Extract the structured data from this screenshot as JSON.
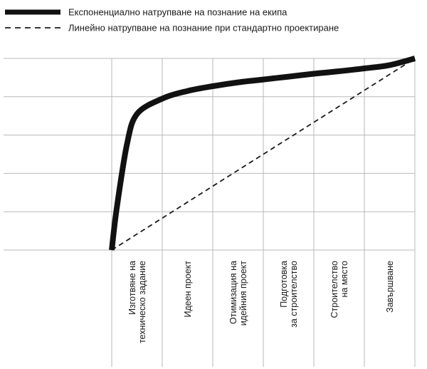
{
  "chart_data": {
    "type": "line",
    "categories": [
      "Изготвяне на техническо задание",
      "Идеен проект",
      "Отимизация на идейния проект",
      "Подготовка за строителство",
      "Строителство на място",
      "Завършване"
    ],
    "tick_labels": [
      [
        "Изготвяне на",
        "техническо задание"
      ],
      [
        "Идеен проект"
      ],
      [
        "Отимизация на",
        "идейния проект"
      ],
      [
        "Подготовка",
        "за строителство"
      ],
      [
        "Строителство",
        "на място"
      ],
      [
        "Завършване"
      ]
    ],
    "x": [
      0,
      0.1,
      0.3,
      0.5,
      1,
      1.5,
      2,
      2.5,
      3,
      3.5,
      4,
      4.5,
      5,
      5.5,
      6
    ],
    "series": [
      {
        "name": "Експоненциално натрупване на познание на екипа",
        "style": "solid-thick",
        "values": [
          0,
          22,
          55,
          71,
          79,
          83,
          85.5,
          87.5,
          89,
          90.5,
          92,
          93.3,
          94.8,
          96.5,
          100
        ]
      },
      {
        "name": "Линейно натрупване на познание при стандартно проектиране",
        "style": "dashed",
        "values": [
          0,
          1.7,
          5,
          8.3,
          16.7,
          25,
          33.3,
          41.7,
          50,
          58.3,
          66.7,
          75,
          83.3,
          91.7,
          100
        ]
      }
    ],
    "xlim": [
      0,
      6
    ],
    "ylim": [
      0,
      100
    ],
    "grid": true,
    "legend": "top-left",
    "title": "",
    "xlabel": "",
    "ylabel": ""
  }
}
